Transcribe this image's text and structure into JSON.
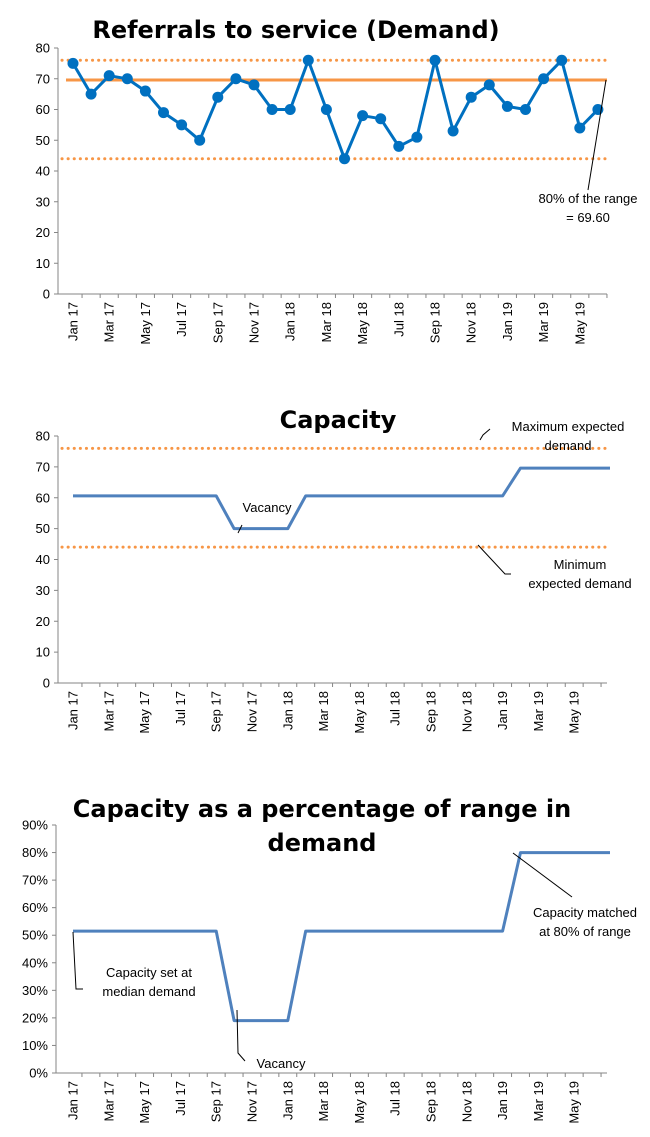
{
  "chart_data": [
    {
      "type": "line",
      "title": "Referrals to service (Demand)",
      "ylim": [
        0,
        80
      ],
      "yticks": [
        0,
        10,
        20,
        30,
        40,
        50,
        60,
        70,
        80
      ],
      "x_labels": [
        "Jan 17",
        "Mar 17",
        "May 17",
        "Jul 17",
        "Sep 17",
        "Nov 17",
        "Jan 18",
        "Mar 18",
        "May 18",
        "Jul 18",
        "Sep 18",
        "Nov 18",
        "Jan 19",
        "Mar 19",
        "May 19"
      ],
      "series": [
        {
          "color": "#0070c0",
          "markers": true,
          "values": [
            75,
            65,
            71,
            70,
            66,
            59,
            55,
            50,
            64,
            70,
            68,
            60,
            60,
            76,
            60,
            44,
            58,
            57,
            48,
            51,
            76,
            53,
            64,
            68,
            61,
            60,
            70,
            76,
            54,
            60
          ]
        }
      ],
      "reference_lines": [
        {
          "value": 76,
          "style": "dotted",
          "color": "#f79646"
        },
        {
          "value": 44,
          "style": "dotted",
          "color": "#f79646"
        },
        {
          "value": 69.6,
          "style": "solid",
          "color": "#f79646"
        }
      ],
      "annotations": [
        {
          "lines": [
            "80% of the range",
            "= 69.60"
          ]
        }
      ],
      "grid": false
    },
    {
      "type": "line",
      "title": "Capacity",
      "ylim": [
        0,
        80
      ],
      "yticks": [
        0,
        10,
        20,
        30,
        40,
        50,
        60,
        70,
        80
      ],
      "x_labels": [
        "Jan 17",
        "Mar 17",
        "May 17",
        "Jul 17",
        "Sep 17",
        "Nov 17",
        "Jan 18",
        "Mar 18",
        "May 18",
        "Jul 18",
        "Sep 18",
        "Nov 18",
        "Jan 19",
        "Mar 19",
        "May 19"
      ],
      "series": [
        {
          "color": "#4f81bd",
          "markers": false,
          "values": [
            60.6,
            60.6,
            60.6,
            60.6,
            60.6,
            60.6,
            60.6,
            60.6,
            60.6,
            50,
            50,
            50,
            50,
            60.6,
            60.6,
            60.6,
            60.6,
            60.6,
            60.6,
            60.6,
            60.6,
            60.6,
            60.6,
            60.6,
            60.6,
            69.6,
            69.6,
            69.6,
            69.6,
            69.6,
            69.6
          ]
        }
      ],
      "reference_lines": [
        {
          "value": 76,
          "style": "dotted",
          "color": "#f79646"
        },
        {
          "value": 44,
          "style": "dotted",
          "color": "#f79646"
        }
      ],
      "annotations": [
        {
          "lines": [
            "Maximum expected",
            "demand"
          ]
        },
        {
          "lines": [
            "Vacancy"
          ]
        },
        {
          "lines": [
            "Minimum",
            "expected demand"
          ]
        }
      ],
      "grid": false
    },
    {
      "type": "line",
      "title": "Capacity as a percentage of range in demand",
      "title_lines": [
        "Capacity as a percentage of range in",
        "demand"
      ],
      "ylim": [
        0,
        90
      ],
      "yticks": [
        "0%",
        "10%",
        "20%",
        "30%",
        "40%",
        "50%",
        "60%",
        "70%",
        "80%",
        "90%"
      ],
      "x_labels": [
        "Jan 17",
        "Mar 17",
        "May 17",
        "Jul 17",
        "Sep 17",
        "Nov 17",
        "Jan 18",
        "Mar 18",
        "May 18",
        "Jul 18",
        "Sep 18",
        "Nov 18",
        "Jan 19",
        "Mar 19",
        "May 19"
      ],
      "series": [
        {
          "color": "#4f81bd",
          "markers": false,
          "values": [
            51.5,
            51.5,
            51.5,
            51.5,
            51.5,
            51.5,
            51.5,
            51.5,
            51.5,
            19,
            19,
            19,
            19,
            51.5,
            51.5,
            51.5,
            51.5,
            51.5,
            51.5,
            51.5,
            51.5,
            51.5,
            51.5,
            51.5,
            51.5,
            80,
            80,
            80,
            80,
            80,
            80
          ]
        }
      ],
      "reference_lines": [],
      "annotations": [
        {
          "lines": [
            "Capacity set at",
            "median demand"
          ]
        },
        {
          "lines": [
            "Vacancy"
          ]
        },
        {
          "lines": [
            "Capacity matched",
            "at 80% of range"
          ]
        }
      ],
      "grid": false
    }
  ]
}
